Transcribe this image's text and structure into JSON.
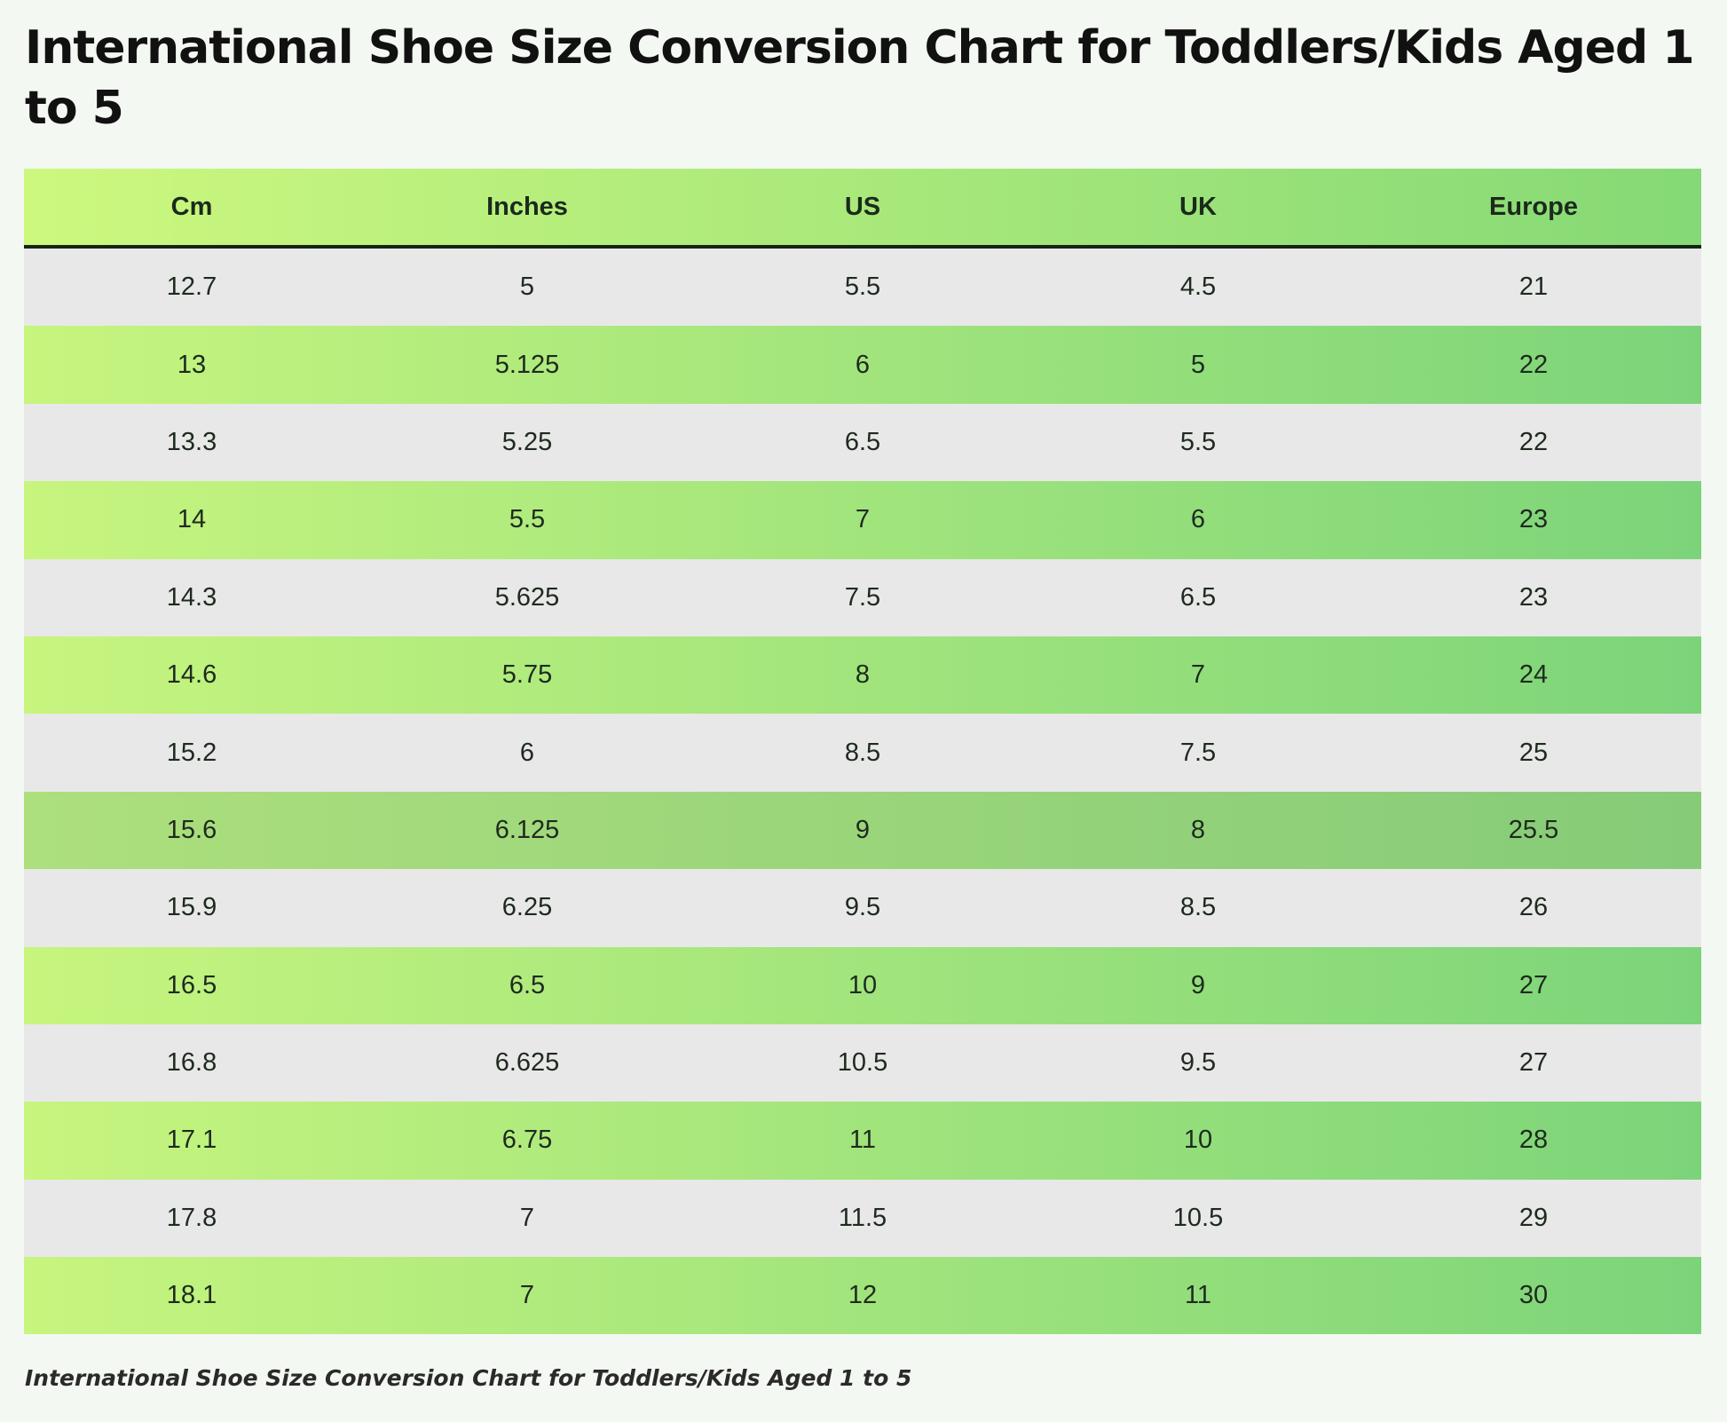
{
  "header": {
    "title": "International Shoe Size Conversion Chart for Toddlers/Kids Aged 1 to 5"
  },
  "table": {
    "columns": [
      "Cm",
      "Inches",
      "US",
      "UK",
      "Europe"
    ],
    "rows": [
      [
        "12.7",
        "5",
        "5.5",
        "4.5",
        "21"
      ],
      [
        "13",
        "5.125",
        "6",
        "5",
        "22"
      ],
      [
        "13.3",
        "5.25",
        "6.5",
        "5.5",
        "22"
      ],
      [
        "14",
        "5.5",
        "7",
        "6",
        "23"
      ],
      [
        "14.3",
        "5.625",
        "7.5",
        "6.5",
        "23"
      ],
      [
        "14.6",
        "5.75",
        "8",
        "7",
        "24"
      ],
      [
        "15.2",
        "6",
        "8.5",
        "7.5",
        "25"
      ],
      [
        "15.6",
        "6.125",
        "9",
        "8",
        "25.5"
      ],
      [
        "15.9",
        "6.25",
        "9.5",
        "8.5",
        "26"
      ],
      [
        "16.5",
        "6.5",
        "10",
        "9",
        "27"
      ],
      [
        "16.8",
        "6.625",
        "10.5",
        "9.5",
        "27"
      ],
      [
        "17.1",
        "6.75",
        "11",
        "10",
        "28"
      ],
      [
        "17.8",
        "7",
        "11.5",
        "10.5",
        "29"
      ],
      [
        "18.1",
        "7",
        "12",
        "11",
        "30"
      ]
    ]
  },
  "caption": "International Shoe Size Conversion Chart for Toddlers/Kids Aged 1 to 5"
}
